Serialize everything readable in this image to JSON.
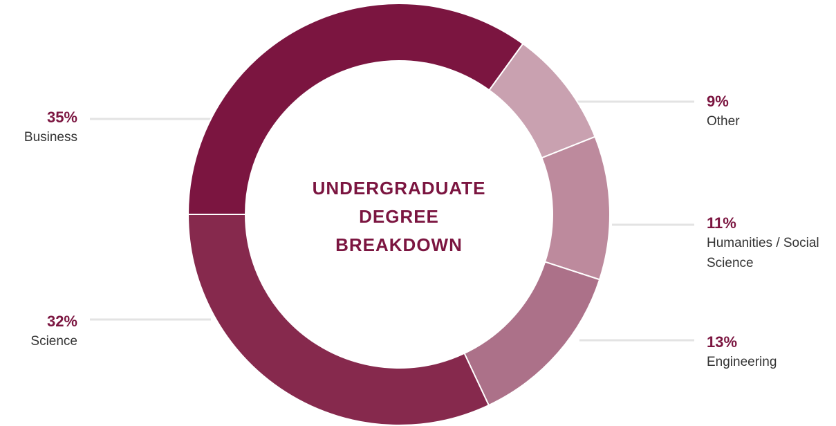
{
  "chart_data": {
    "type": "donut",
    "title": "UNDERGRADUATE DEGREE BREAKDOWN",
    "categories": [
      "Business",
      "Other",
      "Humanities / Social Science",
      "Engineering",
      "Science"
    ],
    "values": [
      35,
      9,
      11,
      13,
      32
    ],
    "value_labels": [
      "35%",
      "9%",
      "11%",
      "13%",
      "32%"
    ],
    "colors": [
      "#7b1540",
      "#c9a1b0",
      "#bd8a9d",
      "#ac7189",
      "#86294d"
    ]
  }
}
